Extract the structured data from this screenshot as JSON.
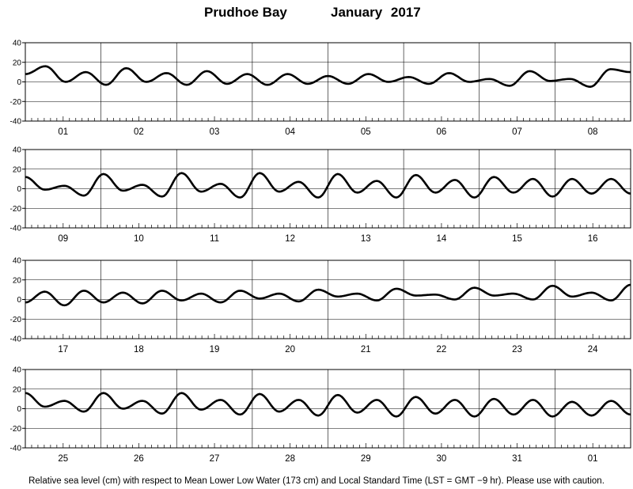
{
  "title": {
    "station": "Prudhoe Bay",
    "month_year": "January   2017"
  },
  "footer": "Relative sea level (cm) with respect to Mean Lower Low Water (173 cm) and Local Standard Time (LST = GMT −9 hr). Please use with caution.",
  "colors": {
    "line": "#000000",
    "grid": "#000000",
    "background": "#ffffff"
  },
  "chart_data": [
    {
      "type": "line",
      "ylim": [
        -40,
        40
      ],
      "yticks": [
        -40,
        -20,
        0,
        20,
        40
      ],
      "grid": true,
      "day_labels": [
        "01",
        "02",
        "03",
        "04",
        "05",
        "06",
        "07",
        "08"
      ],
      "series": [
        {
          "values": [
            8,
            16,
            0,
            10,
            -3,
            14,
            0,
            9,
            -3,
            11,
            -2,
            8,
            -3,
            8,
            -2,
            6,
            -2,
            8,
            0,
            5,
            -2,
            9,
            0,
            3,
            -4,
            11,
            1,
            3,
            -5,
            13,
            10
          ]
        }
      ]
    },
    {
      "type": "line",
      "ylim": [
        -40,
        40
      ],
      "yticks": [
        -40,
        -20,
        0,
        20,
        40
      ],
      "grid": true,
      "day_labels": [
        "09",
        "10",
        "11",
        "12",
        "13",
        "14",
        "15",
        "16"
      ],
      "series": [
        {
          "values": [
            12,
            -1,
            3,
            -7,
            15,
            -2,
            4,
            -8,
            16,
            -3,
            5,
            -9,
            16,
            -3,
            7,
            -9,
            15,
            -4,
            8,
            -9,
            14,
            -4,
            9,
            -9,
            12,
            -4,
            10,
            -8,
            10,
            -5,
            10,
            -5
          ]
        }
      ]
    },
    {
      "type": "line",
      "ylim": [
        -40,
        40
      ],
      "yticks": [
        -40,
        -20,
        0,
        20,
        40
      ],
      "grid": true,
      "day_labels": [
        "17",
        "18",
        "19",
        "20",
        "21",
        "22",
        "23",
        "24"
      ],
      "series": [
        {
          "values": [
            -3,
            8,
            -6,
            9,
            -3,
            7,
            -4,
            9,
            -1,
            6,
            -3,
            9,
            1,
            6,
            -2,
            10,
            3,
            6,
            -1,
            11,
            4,
            5,
            0,
            12,
            4,
            6,
            0,
            14,
            3,
            7,
            -1,
            15
          ]
        }
      ]
    },
    {
      "type": "line",
      "ylim": [
        -40,
        40
      ],
      "yticks": [
        -40,
        -20,
        0,
        20,
        40
      ],
      "grid": true,
      "day_labels": [
        "25",
        "26",
        "27",
        "28",
        "29",
        "30",
        "31",
        "01"
      ],
      "series": [
        {
          "values": [
            16,
            2,
            8,
            -3,
            16,
            0,
            8,
            -5,
            16,
            -1,
            9,
            -6,
            15,
            -3,
            9,
            -7,
            14,
            -4,
            9,
            -8,
            12,
            -5,
            9,
            -8,
            10,
            -6,
            9,
            -8,
            7,
            -7,
            8,
            -6
          ]
        }
      ]
    }
  ]
}
